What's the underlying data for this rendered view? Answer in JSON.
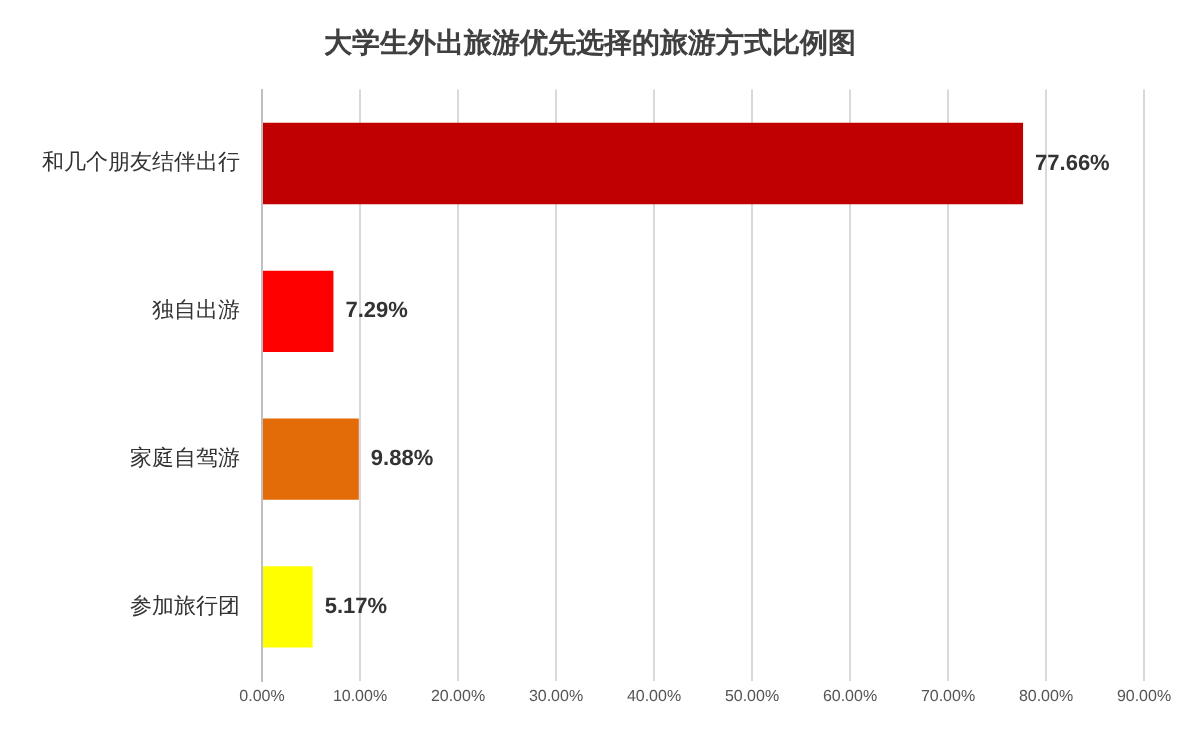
{
  "chart_data": {
    "type": "bar",
    "orientation": "horizontal",
    "title": "大学生外出旅游优先选择的旅游方式比例图",
    "categories": [
      "和几个朋友结伴出行",
      "独自出游",
      "家庭自驾游",
      "参加旅行团"
    ],
    "values": [
      77.66,
      7.29,
      9.88,
      5.17
    ],
    "colors": [
      "#c00000",
      "#ff0000",
      "#e36c09",
      "#ffff00"
    ],
    "value_labels": [
      "77.66%",
      "7.29%",
      "9.88%",
      "5.17%"
    ],
    "xlim": [
      0,
      90
    ],
    "xticks": [
      {
        "value": 0,
        "label": "0.00%"
      },
      {
        "value": 10,
        "label": "10.00%"
      },
      {
        "value": 20,
        "label": "20.00%"
      },
      {
        "value": 30,
        "label": "30.00%"
      },
      {
        "value": 40,
        "label": "40.00%"
      },
      {
        "value": 50,
        "label": "50.00%"
      },
      {
        "value": 60,
        "label": "60.00%"
      },
      {
        "value": 70,
        "label": "70.00%"
      },
      {
        "value": 80,
        "label": "80.00%"
      },
      {
        "value": 90,
        "label": "90.00%"
      }
    ],
    "grid": "x",
    "legend": false
  }
}
